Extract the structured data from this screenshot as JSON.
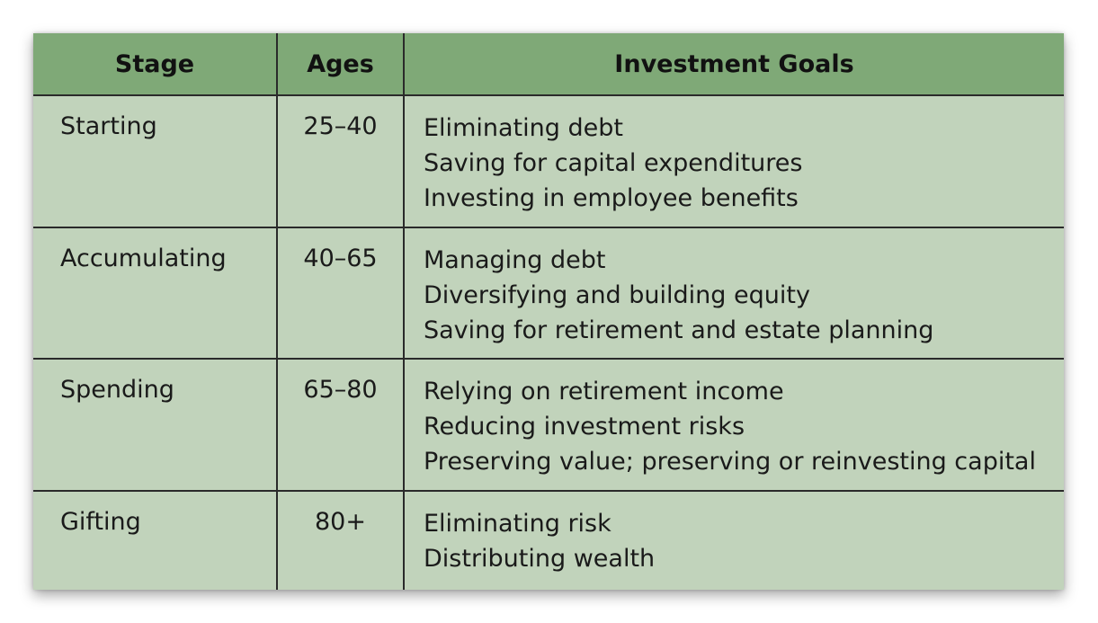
{
  "table": {
    "headers": {
      "stage": "Stage",
      "ages": "Ages",
      "goals": "Investment Goals"
    },
    "rows": [
      {
        "stage": "Starting",
        "ages": "25–40",
        "goals": [
          "Eliminating debt",
          "Saving for capital expenditures",
          "Investing in employee benefits"
        ]
      },
      {
        "stage": "Accumulating",
        "ages": "40–65",
        "goals": [
          "Managing debt",
          "Diversifying and building equity",
          "Saving for retirement and estate planning"
        ]
      },
      {
        "stage": "Spending",
        "ages": "65–80",
        "goals": [
          "Relying on retirement income",
          "Reducing investment risks",
          "Preserving value; preserving or reinvesting capital"
        ]
      },
      {
        "stage": "Gifting",
        "ages": "80+",
        "goals": [
          "Eliminating risk",
          "Distributing wealth"
        ]
      }
    ]
  },
  "colors": {
    "header_bg": "#7fa977",
    "body_bg": "#c1d3bb",
    "rule": "#2a2a2a"
  }
}
